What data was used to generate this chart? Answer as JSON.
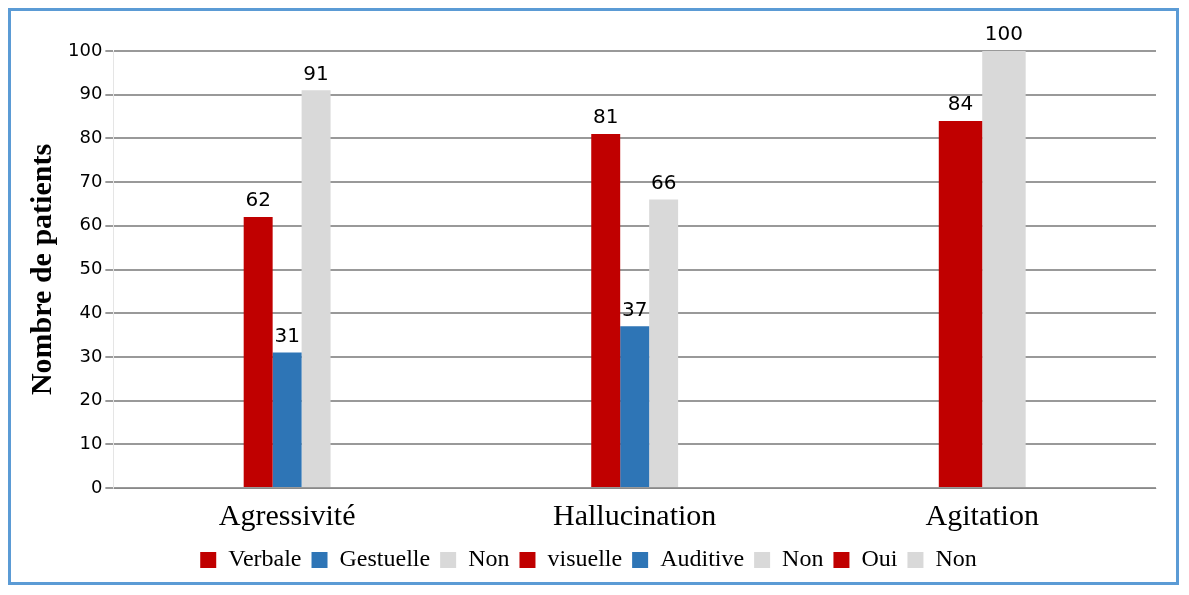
{
  "chart_data": {
    "type": "bar",
    "ylabel": "Nombre de patients",
    "categories": [
      "Agressivité",
      "Hallucination",
      "Agitation"
    ],
    "series": [
      {
        "name": "Verbale",
        "color": "#c00000",
        "values": [
          62,
          null,
          null
        ]
      },
      {
        "name": "Gestuelle",
        "color": "#2e75b6",
        "values": [
          31,
          null,
          null
        ]
      },
      {
        "name": "Non",
        "color": "#d9d9d9",
        "values": [
          91,
          null,
          null
        ]
      },
      {
        "name": "visuelle",
        "color": "#c00000",
        "values": [
          null,
          81,
          null
        ]
      },
      {
        "name": "Auditive",
        "color": "#2e75b6",
        "values": [
          null,
          37,
          null
        ]
      },
      {
        "name": "Non",
        "color": "#d9d9d9",
        "values": [
          null,
          66,
          null
        ]
      },
      {
        "name": "Oui",
        "color": "#c00000",
        "values": [
          null,
          null,
          84
        ]
      },
      {
        "name": "Non",
        "color": "#d9d9d9",
        "values": [
          null,
          null,
          100
        ]
      }
    ],
    "ylim": [
      0,
      100
    ],
    "yticks": [
      0,
      10,
      20,
      30,
      40,
      50,
      60,
      70,
      80,
      90,
      100
    ],
    "grid": "y",
    "legend": "bottom",
    "data_labels": true
  }
}
